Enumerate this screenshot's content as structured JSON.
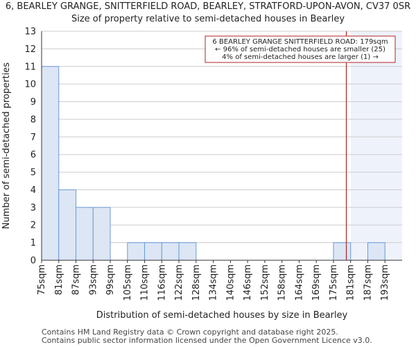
{
  "chart_data": {
    "type": "bar",
    "title": "6, BEARLEY GRANGE, SNITTERFIELD ROAD, BEARLEY, STRATFORD-UPON-AVON, CV37 0SR",
    "subtitle": "Size of property relative to semi-detached houses in Bearley",
    "xlabel": "Distribution of semi-detached houses by size in Bearley",
    "ylabel": "Number of semi-detached properties",
    "categories": [
      "75sqm",
      "81sqm",
      "87sqm",
      "93sqm",
      "99sqm",
      "105sqm",
      "110sqm",
      "116sqm",
      "122sqm",
      "128sqm",
      "134sqm",
      "140sqm",
      "146sqm",
      "152sqm",
      "158sqm",
      "164sqm",
      "169sqm",
      "175sqm",
      "181sqm",
      "187sqm",
      "193sqm"
    ],
    "values": [
      11,
      4,
      3,
      3,
      0,
      1,
      1,
      1,
      1,
      0,
      0,
      0,
      0,
      0,
      0,
      0,
      0,
      1,
      0,
      1,
      0
    ],
    "ylim": [
      0,
      13
    ],
    "yticks": [
      0,
      1,
      2,
      3,
      4,
      5,
      6,
      7,
      8,
      9,
      10,
      11,
      12,
      13
    ],
    "marker": {
      "label": "179sqm",
      "bin_position": 17.75
    },
    "highlight_from_bin": 18,
    "annotation": {
      "line1": "6 BEARLEY GRANGE SNITTERFIELD ROAD: 179sqm",
      "line2": "← 96% of semi-detached houses are smaller (25)",
      "line3": "4% of semi-detached houses are larger (1) →"
    },
    "colors": {
      "bar_fill": "#dce6f5",
      "bar_stroke": "#6a9bd8",
      "marker": "#b22222",
      "highlight": "#eef3fb",
      "grid": "#cccccc",
      "axis": "#333333"
    }
  },
  "footer": {
    "line1": "Contains HM Land Registry data © Crown copyright and database right 2025.",
    "line2": "Contains public sector information licensed under the Open Government Licence v3.0."
  }
}
